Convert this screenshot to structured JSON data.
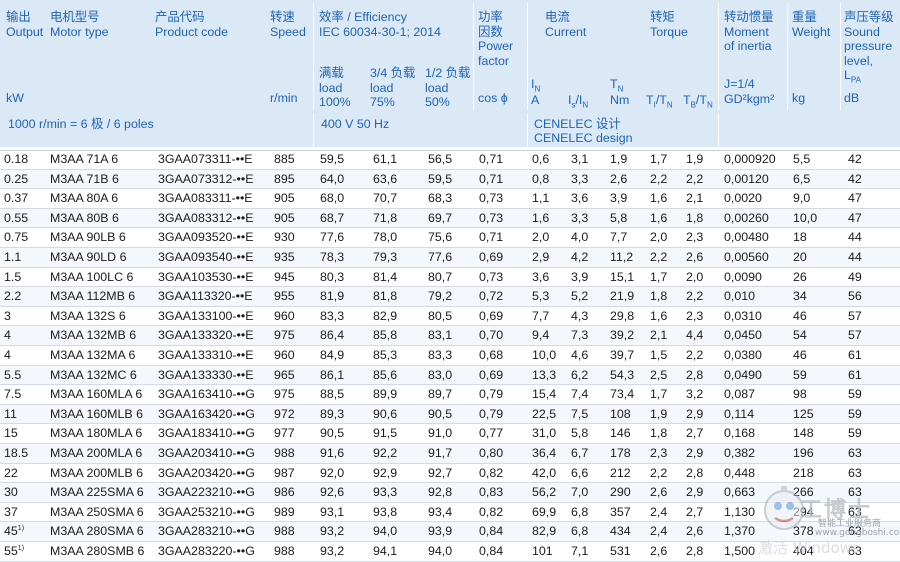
{
  "header": {
    "output": [
      "输出",
      "Output",
      "kW"
    ],
    "motor_type": [
      "电机型号",
      "Motor type"
    ],
    "product_code": [
      "产品代码",
      "Product code"
    ],
    "speed": [
      "转速",
      "Speed",
      "r/min"
    ],
    "efficiency": [
      "效率 / Efficiency",
      "IEC 60034-30-1; 2014"
    ],
    "eff_full": [
      "满载",
      "load",
      "100%"
    ],
    "eff_34": [
      "3/4 负载",
      "load",
      "75%"
    ],
    "eff_12": [
      "1/2 负载",
      "load",
      "50%"
    ],
    "power_factor": [
      "功率",
      "因数",
      "Power",
      "factor",
      "cos ϕ"
    ],
    "current": [
      "电流",
      "Current"
    ],
    "i_n": "I_N",
    "i_n_unit": "A",
    "is_in": "I_s/I_N",
    "torque": [
      "转矩",
      "Torque"
    ],
    "t_n": "T_N",
    "t_n_unit": "Nm",
    "ti_tn": "T_I/T_N",
    "tb_tn": "T_B/T_N",
    "moment": [
      "转动惯量",
      "Moment",
      "of inertia"
    ],
    "moment_formula": [
      "J=1/4",
      "GD²kgm²"
    ],
    "weight": [
      "重量",
      "Weight",
      "kg"
    ],
    "sound": [
      "声压等级",
      "Sound",
      "pressure",
      "level,",
      "L_PA",
      "dB"
    ]
  },
  "subheader": {
    "poles": "1000 r/min = 6 极 / 6 poles",
    "voltage": "400 V 50 Hz",
    "cenelec_cn": "CENELEC 设计",
    "cenelec_en": "CENELEC design"
  },
  "rows": [
    {
      "kw": "0.18",
      "note": "",
      "type": "M3AA 71A 6",
      "code": "3GAA073311-••E",
      "speed": "885",
      "e100": "59,5",
      "e75": "61,1",
      "e50": "56,5",
      "pf": "0,71",
      "in": "0,6",
      "isin": "3,1",
      "tn": "1,9",
      "titn": "1,7",
      "tbtn": "1,9",
      "j": "0,000920",
      "kg": "5,5",
      "db": "42"
    },
    {
      "kw": "0.25",
      "note": "",
      "type": "M3AA 71B 6",
      "code": "3GAA073312-••E",
      "speed": "895",
      "e100": "64,0",
      "e75": "63,6",
      "e50": "59,5",
      "pf": "0,71",
      "in": "0,8",
      "isin": "3,3",
      "tn": "2,6",
      "titn": "2,2",
      "tbtn": "2,2",
      "j": "0,00120",
      "kg": "6,5",
      "db": "42"
    },
    {
      "kw": "0.37",
      "note": "",
      "type": "M3AA 80A 6",
      "code": "3GAA083311-••E",
      "speed": "905",
      "e100": "68,0",
      "e75": "70,7",
      "e50": "68,3",
      "pf": "0,73",
      "in": "1,1",
      "isin": "3,6",
      "tn": "3,9",
      "titn": "1,6",
      "tbtn": "2,1",
      "j": "0,0020",
      "kg": "9,0",
      "db": "47"
    },
    {
      "kw": "0.55",
      "note": "",
      "type": "M3AA 80B 6",
      "code": "3GAA083312-••E",
      "speed": "905",
      "e100": "68,7",
      "e75": "71,8",
      "e50": "69,7",
      "pf": "0,73",
      "in": "1,6",
      "isin": "3,3",
      "tn": "5,8",
      "titn": "1,6",
      "tbtn": "1,8",
      "j": "0,00260",
      "kg": "10,0",
      "db": "47"
    },
    {
      "kw": "0.75",
      "note": "",
      "type": "M3AA 90LB 6",
      "code": "3GAA093520-••E",
      "speed": "930",
      "e100": "77,6",
      "e75": "78,0",
      "e50": "75,6",
      "pf": "0,71",
      "in": "2,0",
      "isin": "4,0",
      "tn": "7,7",
      "titn": "2,0",
      "tbtn": "2,3",
      "j": "0,00480",
      "kg": "18",
      "db": "44"
    },
    {
      "kw": "1.1",
      "note": "",
      "type": "M3AA 90LD 6",
      "code": "3GAA093540-••E",
      "speed": "935",
      "e100": "78,3",
      "e75": "79,3",
      "e50": "77,6",
      "pf": "0,69",
      "in": "2,9",
      "isin": "4,2",
      "tn": "11,2",
      "titn": "2,2",
      "tbtn": "2,6",
      "j": "0,00560",
      "kg": "20",
      "db": "44"
    },
    {
      "kw": "1.5",
      "note": "",
      "type": "M3AA 100LC 6",
      "code": "3GAA103530-••E",
      "speed": "945",
      "e100": "80,3",
      "e75": "81,4",
      "e50": "80,7",
      "pf": "0,73",
      "in": "3,6",
      "isin": "3,9",
      "tn": "15,1",
      "titn": "1,7",
      "tbtn": "2,0",
      "j": "0,0090",
      "kg": "26",
      "db": "49"
    },
    {
      "kw": "2.2",
      "note": "",
      "type": "M3AA 112MB 6",
      "code": "3GAA113320-••E",
      "speed": "955",
      "e100": "81,9",
      "e75": "81,8",
      "e50": "79,2",
      "pf": "0,72",
      "in": "5,3",
      "isin": "5,2",
      "tn": "21,9",
      "titn": "1,8",
      "tbtn": "2,2",
      "j": "0,010",
      "kg": "34",
      "db": "56"
    },
    {
      "kw": "3",
      "note": "",
      "type": "M3AA 132S 6",
      "code": "3GAA133100-••E",
      "speed": "960",
      "e100": "83,3",
      "e75": "82,9",
      "e50": "80,5",
      "pf": "0,69",
      "in": "7,7",
      "isin": "4,3",
      "tn": "29,8",
      "titn": "1,6",
      "tbtn": "2,3",
      "j": "0,0310",
      "kg": "46",
      "db": "57"
    },
    {
      "kw": "4",
      "note": "",
      "type": "M3AA 132MB 6",
      "code": "3GAA133320-••E",
      "speed": "975",
      "e100": "86,4",
      "e75": "85,8",
      "e50": "83,1",
      "pf": "0,70",
      "in": "9,4",
      "isin": "7,3",
      "tn": "39,2",
      "titn": "2,1",
      "tbtn": "4,4",
      "j": "0,0450",
      "kg": "54",
      "db": "57"
    },
    {
      "kw": "4",
      "note": "",
      "type": "M3AA 132MA 6",
      "code": "3GAA133310-••E",
      "speed": "960",
      "e100": "84,9",
      "e75": "85,3",
      "e50": "83,3",
      "pf": "0,68",
      "in": "10,0",
      "isin": "4,6",
      "tn": "39,7",
      "titn": "1,5",
      "tbtn": "2,2",
      "j": "0,0380",
      "kg": "46",
      "db": "61"
    },
    {
      "kw": "5.5",
      "note": "",
      "type": "M3AA 132MC 6",
      "code": "3GAA133330-••E",
      "speed": "965",
      "e100": "86,1",
      "e75": "85,6",
      "e50": "83,0",
      "pf": "0,69",
      "in": "13,3",
      "isin": "6,2",
      "tn": "54,3",
      "titn": "2,5",
      "tbtn": "2,8",
      "j": "0,0490",
      "kg": "59",
      "db": "61"
    },
    {
      "kw": "7.5",
      "note": "",
      "type": "M3AA 160MLA 6",
      "code": "3GAA163410-••G",
      "speed": "975",
      "e100": "88,5",
      "e75": "89,9",
      "e50": "89,7",
      "pf": "0,79",
      "in": "15,4",
      "isin": "7,4",
      "tn": "73,4",
      "titn": "1,7",
      "tbtn": "3,2",
      "j": "0,087",
      "kg": "98",
      "db": "59"
    },
    {
      "kw": "11",
      "note": "",
      "type": "M3AA 160MLB 6",
      "code": "3GAA163420-••G",
      "speed": "972",
      "e100": "89,3",
      "e75": "90,6",
      "e50": "90,5",
      "pf": "0,79",
      "in": "22,5",
      "isin": "7,5",
      "tn": "108",
      "titn": "1,9",
      "tbtn": "2,9",
      "j": "0,114",
      "kg": "125",
      "db": "59"
    },
    {
      "kw": "15",
      "note": "",
      "type": "M3AA 180MLA 6",
      "code": "3GAA183410-••G",
      "speed": "977",
      "e100": "90,5",
      "e75": "91,5",
      "e50": "91,0",
      "pf": "0,77",
      "in": "31,0",
      "isin": "5,8",
      "tn": "146",
      "titn": "1,8",
      "tbtn": "2,7",
      "j": "0,168",
      "kg": "148",
      "db": "59"
    },
    {
      "kw": "18.5",
      "note": "",
      "type": "M3AA 200MLA 6",
      "code": "3GAA203410-••G",
      "speed": "988",
      "e100": "91,6",
      "e75": "92,2",
      "e50": "91,7",
      "pf": "0,80",
      "in": "36,4",
      "isin": "6,7",
      "tn": "178",
      "titn": "2,3",
      "tbtn": "2,9",
      "j": "0,382",
      "kg": "196",
      "db": "63"
    },
    {
      "kw": "22",
      "note": "",
      "type": "M3AA 200MLB 6",
      "code": "3GAA203420-••G",
      "speed": "987",
      "e100": "92,0",
      "e75": "92,9",
      "e50": "92,7",
      "pf": "0,82",
      "in": "42,0",
      "isin": "6,6",
      "tn": "212",
      "titn": "2,2",
      "tbtn": "2,8",
      "j": "0,448",
      "kg": "218",
      "db": "63"
    },
    {
      "kw": "30",
      "note": "",
      "type": "M3AA 225SMA 6",
      "code": "3GAA223210-••G",
      "speed": "986",
      "e100": "92,6",
      "e75": "93,3",
      "e50": "92,8",
      "pf": "0,83",
      "in": "56,2",
      "isin": "7,0",
      "tn": "290",
      "titn": "2,6",
      "tbtn": "2,9",
      "j": "0,663",
      "kg": "266",
      "db": "63"
    },
    {
      "kw": "37",
      "note": "",
      "type": "M3AA 250SMA 6",
      "code": "3GAA253210-••G",
      "speed": "989",
      "e100": "93,1",
      "e75": "93,8",
      "e50": "93,4",
      "pf": "0,82",
      "in": "69,9",
      "isin": "6,8",
      "tn": "357",
      "titn": "2,4",
      "tbtn": "2,7",
      "j": "1,130",
      "kg": "294",
      "db": "63"
    },
    {
      "kw": "45",
      "note": "1)",
      "type": "M3AA 280SMA 6",
      "code": "3GAA283210-••G",
      "speed": "988",
      "e100": "93,2",
      "e75": "94,0",
      "e50": "93,9",
      "pf": "0,84",
      "in": "82,9",
      "isin": "6,8",
      "tn": "434",
      "titn": "2,4",
      "tbtn": "2,6",
      "j": "1,370",
      "kg": "378",
      "db": "63"
    },
    {
      "kw": "55",
      "note": "1)",
      "type": "M3AA 280SMB 6",
      "code": "3GAA283220-••G",
      "speed": "988",
      "e100": "93,2",
      "e75": "94,1",
      "e50": "94,0",
      "pf": "0,84",
      "in": "101",
      "isin": "7,1",
      "tn": "531",
      "titn": "2,6",
      "tbtn": "2,8",
      "j": "1,500",
      "kg": "404",
      "db": "63"
    }
  ],
  "watermark": {
    "brand": "工博士",
    "tagline": "智能工业服务商",
    "url": "www.gongboshi.com",
    "os_text": "激活 Windows"
  }
}
